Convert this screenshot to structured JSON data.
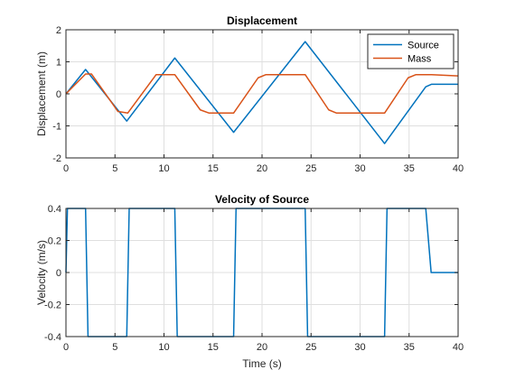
{
  "chart_data": [
    {
      "type": "line",
      "title": "Displacement",
      "xlabel": "",
      "ylabel": "Displacement (m)",
      "xlim": [
        0,
        40
      ],
      "ylim": [
        -2,
        2
      ],
      "xticks": [
        0,
        5,
        10,
        15,
        20,
        25,
        30,
        35,
        40
      ],
      "yticks": [
        -2,
        -1,
        0,
        1,
        2
      ],
      "grid": true,
      "legend": "top-right",
      "series": [
        {
          "name": "Source",
          "color": "#0072BD",
          "x": [
            0,
            2.0,
            6.2,
            11.1,
            17.1,
            24.4,
            32.5,
            36.7,
            37.3,
            40
          ],
          "y": [
            0,
            0.76,
            -0.85,
            1.12,
            -1.2,
            1.63,
            -1.55,
            0.22,
            0.3,
            0.3
          ]
        },
        {
          "name": "Mass",
          "color": "#D95319",
          "x": [
            0,
            2.0,
            2.6,
            5.3,
            6.3,
            9.2,
            11.1,
            13.7,
            14.6,
            17.1,
            19.6,
            20.4,
            24.4,
            26.8,
            27.6,
            32.5,
            34.9,
            35.7,
            37.3,
            40
          ],
          "y": [
            0,
            0.62,
            0.62,
            -0.55,
            -0.6,
            0.6,
            0.6,
            -0.5,
            -0.6,
            -0.6,
            0.5,
            0.6,
            0.6,
            -0.5,
            -0.6,
            -0.6,
            0.5,
            0.6,
            0.6,
            0.56
          ]
        }
      ]
    },
    {
      "type": "line",
      "title": "Velocity of Source",
      "xlabel": "Time (s)",
      "ylabel": "Velocity (m/s)",
      "xlim": [
        0,
        40
      ],
      "ylim": [
        -0.4,
        0.4
      ],
      "xticks": [
        0,
        5,
        10,
        15,
        20,
        25,
        30,
        35,
        40
      ],
      "yticks": [
        -0.4,
        -0.2,
        0,
        0.2,
        0.4
      ],
      "grid": true,
      "series": [
        {
          "name": "",
          "color": "#0072BD",
          "x": [
            0,
            0.15,
            2.0,
            2.25,
            6.2,
            6.45,
            11.1,
            11.35,
            17.1,
            17.35,
            24.4,
            24.65,
            32.5,
            32.75,
            36.7,
            37.25,
            40
          ],
          "y": [
            0,
            0.4,
            0.4,
            -0.4,
            -0.4,
            0.4,
            0.4,
            -0.4,
            -0.4,
            0.4,
            0.4,
            -0.4,
            -0.4,
            0.4,
            0.4,
            0,
            0
          ]
        }
      ]
    }
  ]
}
